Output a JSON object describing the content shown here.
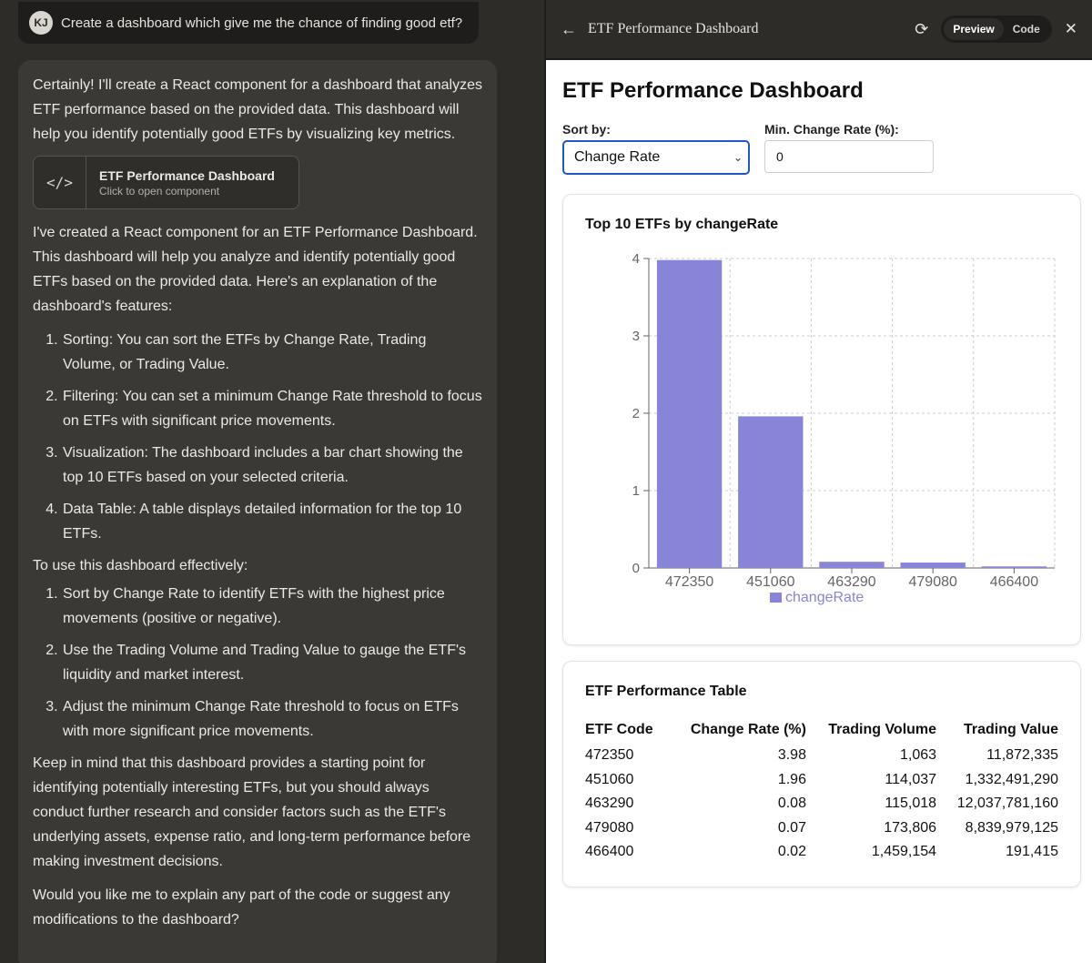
{
  "chat": {
    "user": {
      "initials": "KJ",
      "message": "Create a dashboard which give me the chance of finding good etf?"
    },
    "assistant": {
      "intro": "Certainly! I'll create a React component for a dashboard that analyzes ETF performance based on the provided data. This dashboard will help you identify potentially good ETFs by visualizing key metrics.",
      "artifact": {
        "icon": "code-icon",
        "title": "ETF Performance Dashboard",
        "subtitle": "Click to open component"
      },
      "explain": "I've created a React component for an ETF Performance Dashboard. This dashboard will help you analyze and identify potentially good ETFs based on the provided data. Here's an explanation of the dashboard's features:",
      "features": [
        "Sorting: You can sort the ETFs by Change Rate, Trading Volume, or Trading Value.",
        "Filtering: You can set a minimum Change Rate threshold to focus on ETFs with significant price movements.",
        "Visualization: The dashboard includes a bar chart showing the top 10 ETFs based on your selected criteria.",
        "Data Table: A table displays detailed information for the top 10 ETFs."
      ],
      "usage_heading": "To use this dashboard effectively:",
      "usage": [
        "Sort by Change Rate to identify ETFs with the highest price movements (positive or negative).",
        "Use the Trading Volume and Trading Value to gauge the ETF's liquidity and market interest.",
        "Adjust the minimum Change Rate threshold to focus on ETFs with more significant price movements."
      ],
      "caveat": "Keep in mind that this dashboard provides a starting point for identifying potentially interesting ETFs, but you should always conduct further research and consider factors such as the ETF's underlying assets, expense ratio, and long-term performance before making investment decisions.",
      "followup": "Would you like me to explain any part of the code or suggest any modifications to the dashboard?"
    }
  },
  "preview": {
    "topbar": {
      "back_icon": "arrow-left-icon",
      "title": "ETF Performance Dashboard",
      "refresh_icon": "refresh-icon",
      "preview_label": "Preview",
      "code_label": "Code",
      "close_icon": "close-icon"
    },
    "heading": "ETF Performance Dashboard",
    "sort_label": "Sort by:",
    "sort_value": "Change Rate",
    "min_label": "Min. Change Rate (%):",
    "min_value": "0",
    "chart_title": "Top 10 ETFs by changeRate",
    "table_title": "ETF Performance Table",
    "table": {
      "headers": [
        "ETF Code",
        "Change Rate (%)",
        "Trading Volume",
        "Trading Value"
      ],
      "rows": [
        [
          "472350",
          "3.98",
          "1,063",
          "11,872,335"
        ],
        [
          "451060",
          "1.96",
          "114,037",
          "1,332,491,290"
        ],
        [
          "463290",
          "0.08",
          "115,018",
          "12,037,781,160"
        ],
        [
          "479080",
          "0.07",
          "173,806",
          "8,839,979,125"
        ],
        [
          "466400",
          "0.02",
          "1,459,154",
          "191,415"
        ]
      ]
    }
  },
  "chart_data": {
    "type": "bar",
    "title": "Top 10 ETFs by changeRate",
    "categories": [
      "472350",
      "451060",
      "463290",
      "479080",
      "466400"
    ],
    "series": [
      {
        "name": "changeRate",
        "values": [
          3.98,
          1.96,
          0.08,
          0.07,
          0.02
        ]
      }
    ],
    "ylim": [
      0,
      4
    ],
    "yticks": [
      0,
      1,
      2,
      3,
      4
    ],
    "grid": true,
    "legend": "bottom",
    "bar_color": "#8884d8"
  }
}
